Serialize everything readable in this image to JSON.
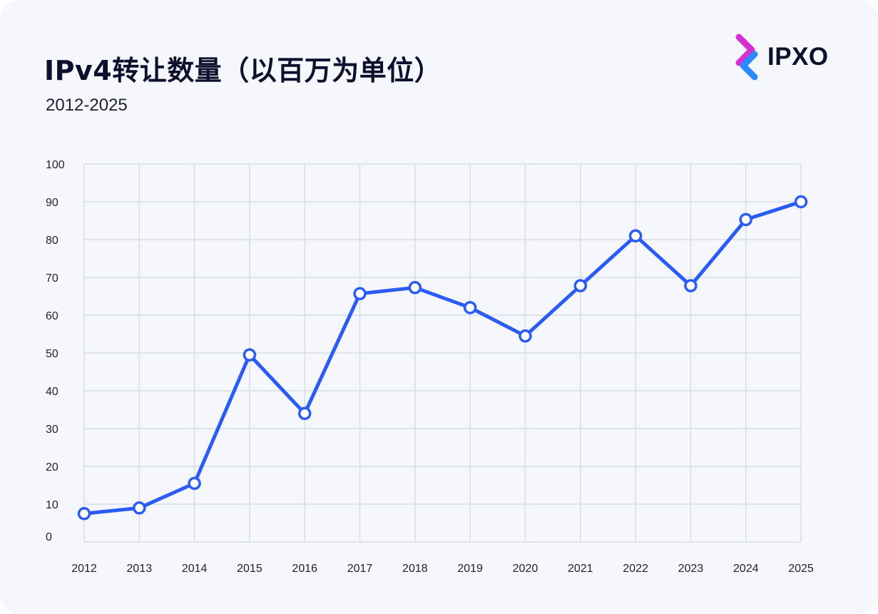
{
  "header": {
    "title": "IPv4转让数量（以百万为单位）",
    "subtitle": "2012-2025"
  },
  "logo": {
    "text": "IPXO",
    "mark_icon": "ipxo-chevrons-logo",
    "colors": [
      "#d62fd3",
      "#2a8bff"
    ]
  },
  "colors": {
    "line": "#2a5cf5",
    "grid": "#d7dee6",
    "marker_fill": "#ffffff",
    "background": "#f6f7fd"
  },
  "chart_data": {
    "type": "line",
    "x": [
      "2012",
      "2013",
      "2014",
      "2015",
      "2016",
      "2017",
      "2018",
      "2019",
      "2020",
      "2021",
      "2022",
      "2023",
      "2024",
      "2025"
    ],
    "series": [
      {
        "values": [
          7.5,
          9,
          15.5,
          49.5,
          34,
          65.7,
          67.3,
          62,
          54.5,
          67.8,
          81,
          67.8,
          85.3,
          90
        ]
      }
    ],
    "title": "IPv4转让数量（以百万为单位）",
    "subtitle": "2012-2025",
    "xlabel": "",
    "ylabel": "",
    "ylim": [
      0,
      100
    ],
    "yticks": [
      "0",
      "10",
      "20",
      "30",
      "40",
      "50",
      "60",
      "70",
      "80",
      "90",
      "100"
    ],
    "grid": true,
    "markers": "hollow-circle",
    "legend": "none"
  }
}
